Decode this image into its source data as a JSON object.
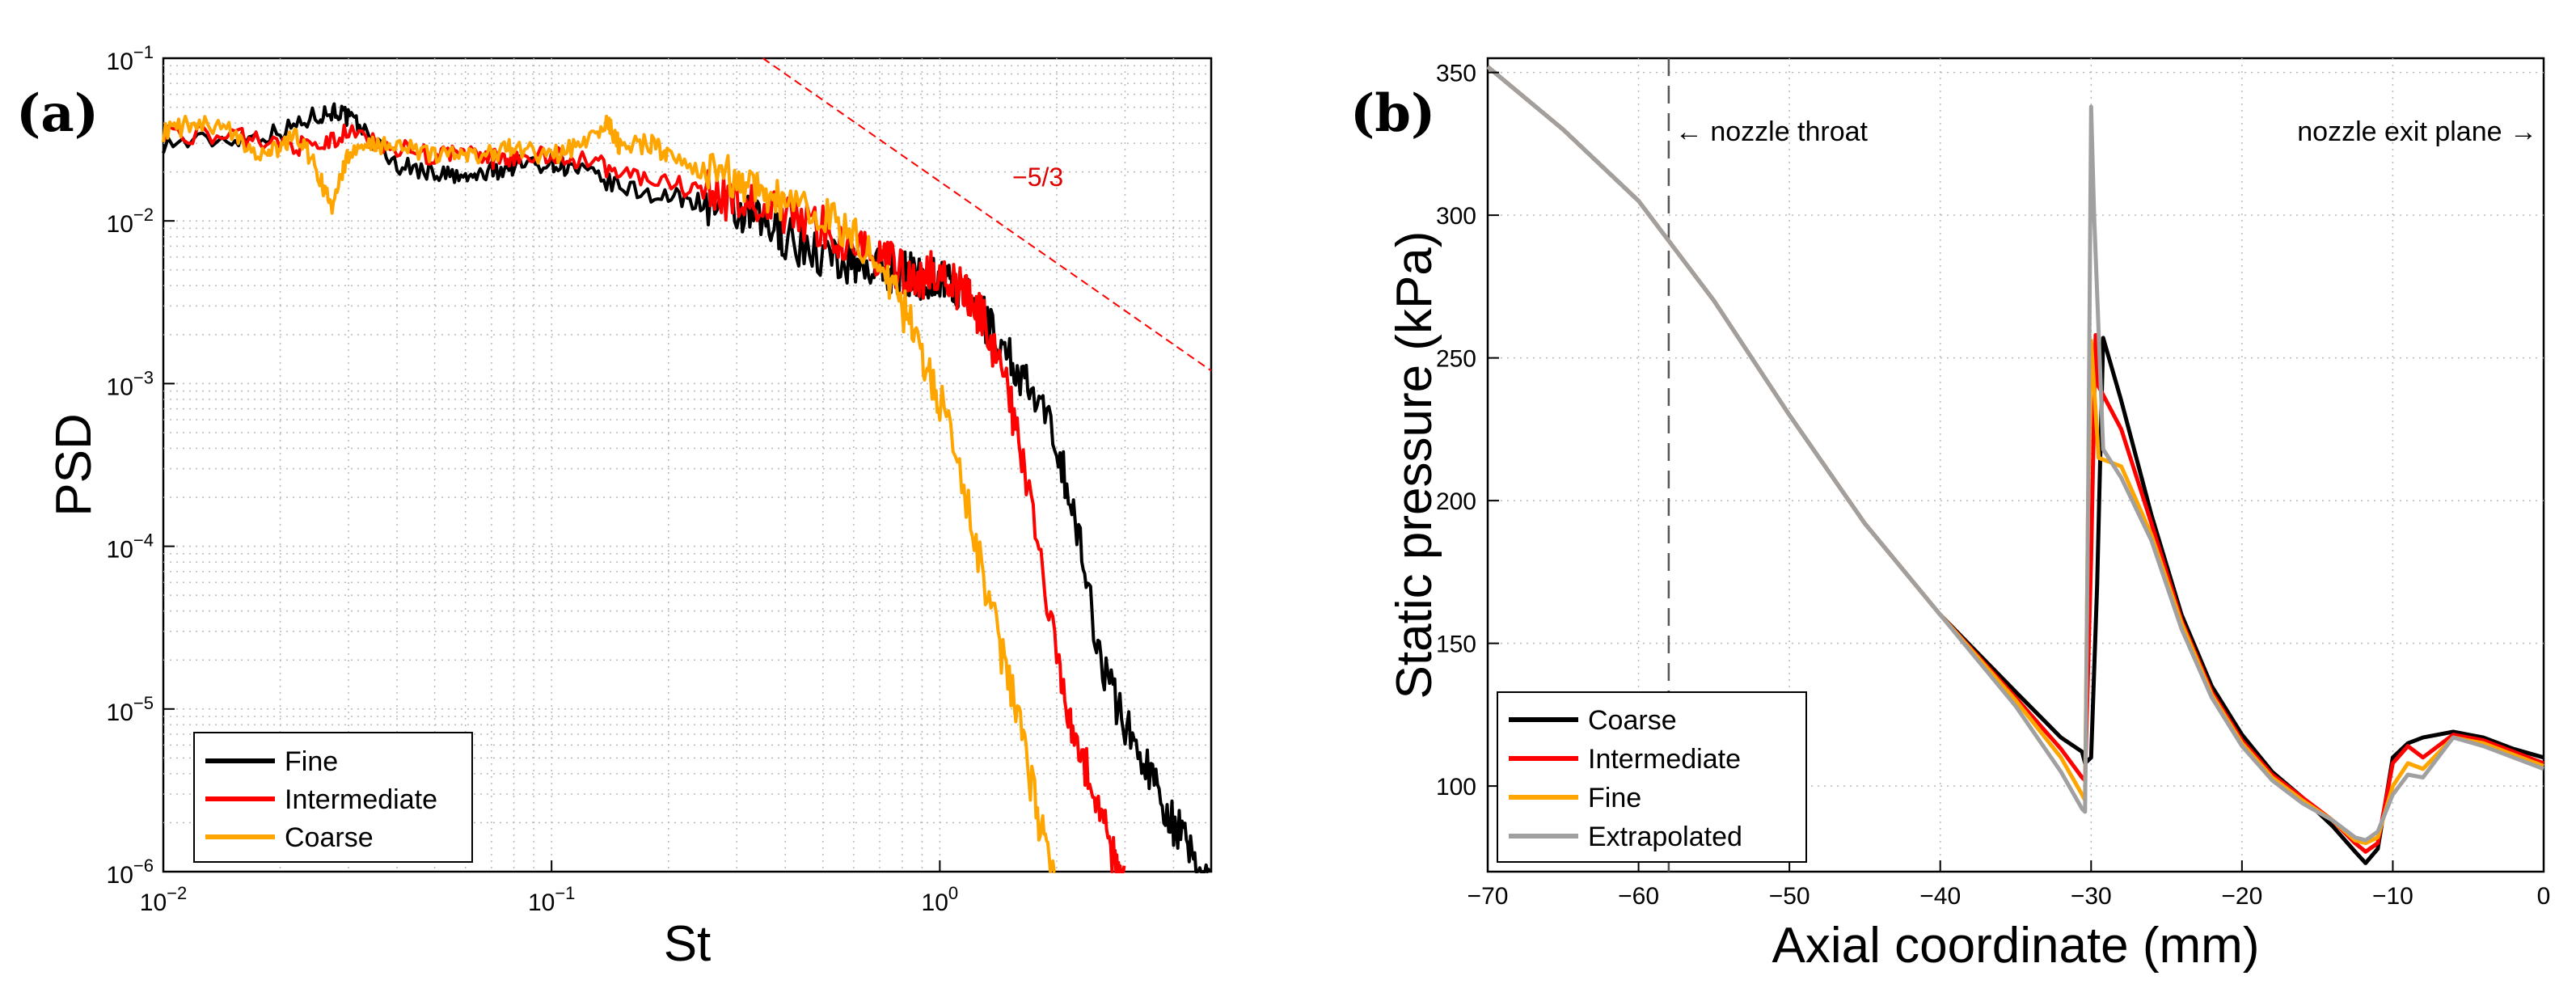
{
  "chart_data": [
    {
      "type": "line",
      "panel_label": "(a)",
      "xlabel": "St",
      "ylabel": "PSD",
      "xscale": "log",
      "yscale": "log",
      "xlim": [
        0.01,
        5
      ],
      "ylim": [
        1e-06,
        0.1
      ],
      "xticks": [
        0.01,
        0.1,
        1
      ],
      "xtick_labels": [
        {
          "base": "10",
          "exp": "−2"
        },
        {
          "base": "10",
          "exp": "−1"
        },
        {
          "base": "10",
          "exp": "0"
        }
      ],
      "yticks": [
        1e-06,
        1e-05,
        0.0001,
        0.001,
        0.01,
        0.1
      ],
      "ytick_labels": [
        {
          "base": "10",
          "exp": "−6"
        },
        {
          "base": "10",
          "exp": "−5"
        },
        {
          "base": "10",
          "exp": "−4"
        },
        {
          "base": "10",
          "exp": "−3"
        },
        {
          "base": "10",
          "exp": "−2"
        },
        {
          "base": "10",
          "exp": "−1"
        }
      ],
      "grid": true,
      "legend_position": "bottom-left",
      "series": [
        {
          "name": "Fine",
          "color": "#000000",
          "x": [
            0.01,
            0.015,
            0.02,
            0.025,
            0.028,
            0.032,
            0.04,
            0.05,
            0.06,
            0.07,
            0.08,
            0.1,
            0.12,
            0.15,
            0.2,
            0.25,
            0.3,
            0.35,
            0.4,
            0.5,
            0.6,
            0.7,
            0.8,
            0.9,
            1.0,
            1.1,
            1.3,
            1.5,
            1.7,
            2.0,
            2.3,
            2.6,
            3.0,
            3.5,
            4.0,
            4.5,
            5.0
          ],
          "y": [
            0.03,
            0.032,
            0.035,
            0.045,
            0.048,
            0.038,
            0.022,
            0.02,
            0.018,
            0.02,
            0.022,
            0.023,
            0.02,
            0.016,
            0.014,
            0.013,
            0.011,
            0.0095,
            0.008,
            0.006,
            0.0055,
            0.005,
            0.0048,
            0.0045,
            0.0045,
            0.0038,
            0.0025,
            0.0015,
            0.0009,
            0.00045,
            0.0001,
            2e-05,
            8e-06,
            4e-06,
            2e-06,
            1.2e-06,
            8e-07
          ]
        },
        {
          "name": "Intermediate",
          "color": "#ff0000",
          "x": [
            0.01,
            0.015,
            0.02,
            0.025,
            0.03,
            0.04,
            0.05,
            0.06,
            0.07,
            0.08,
            0.1,
            0.12,
            0.15,
            0.2,
            0.25,
            0.3,
            0.35,
            0.4,
            0.5,
            0.6,
            0.7,
            0.8,
            0.9,
            1.0,
            1.1,
            1.2,
            1.3,
            1.5,
            1.7,
            2.0,
            2.2,
            2.5,
            2.8,
            3.0
          ],
          "y": [
            0.035,
            0.033,
            0.03,
            0.028,
            0.035,
            0.028,
            0.025,
            0.026,
            0.024,
            0.025,
            0.025,
            0.024,
            0.02,
            0.017,
            0.015,
            0.013,
            0.012,
            0.011,
            0.009,
            0.007,
            0.006,
            0.005,
            0.0045,
            0.005,
            0.004,
            0.0032,
            0.0025,
            0.0009,
            0.0002,
            2e-05,
            8e-06,
            3e-06,
            1.2e-06,
            8e-07
          ]
        },
        {
          "name": "Coarse",
          "color": "#ffa500",
          "x": [
            0.01,
            0.012,
            0.015,
            0.018,
            0.02,
            0.022,
            0.025,
            0.027,
            0.03,
            0.035,
            0.04,
            0.05,
            0.06,
            0.07,
            0.08,
            0.1,
            0.12,
            0.14,
            0.15,
            0.18,
            0.2,
            0.25,
            0.3,
            0.35,
            0.4,
            0.5,
            0.6,
            0.7,
            0.8,
            0.9,
            1.0,
            1.2,
            1.4,
            1.6,
            1.8,
            2.0
          ],
          "y": [
            0.035,
            0.04,
            0.035,
            0.025,
            0.028,
            0.035,
            0.02,
            0.012,
            0.025,
            0.03,
            0.028,
            0.026,
            0.025,
            0.026,
            0.028,
            0.025,
            0.03,
            0.04,
            0.028,
            0.03,
            0.025,
            0.02,
            0.018,
            0.016,
            0.013,
            0.011,
            0.008,
            0.005,
            0.003,
            0.0015,
            0.0008,
            0.00015,
            3e-05,
            8e-06,
            2e-06,
            8e-07
          ]
        }
      ],
      "reference_line": {
        "label": "−5/3",
        "color": "#ff0000",
        "x": [
          0.35,
          5.0
        ],
        "y": [
          0.1,
          0.0012
        ]
      }
    },
    {
      "type": "line",
      "panel_label": "(b)",
      "xlabel": "Axial coordinate (mm)",
      "ylabel": "Static pressure (kPa)",
      "xlim": [
        -70,
        0
      ],
      "ylim": [
        70,
        355
      ],
      "xticks": [
        -70,
        -60,
        -50,
        -40,
        -30,
        -20,
        -10,
        0
      ],
      "xtick_labels": [
        "−70",
        "−60",
        "−50",
        "−40",
        "−30",
        "−20",
        "−10",
        "0"
      ],
      "yticks": [
        100,
        150,
        200,
        250,
        300,
        350
      ],
      "ytick_labels": [
        "100",
        "150",
        "200",
        "250",
        "300",
        "350"
      ],
      "grid": true,
      "legend_position": "bottom-left",
      "annotations": {
        "throat_text": "← nozzle throat",
        "throat_x": -58,
        "exit_text": "nozzle exit plane →"
      },
      "series": [
        {
          "name": "Coarse",
          "color": "#000000",
          "x": [
            -70,
            -65,
            -60,
            -55,
            -50,
            -45,
            -40,
            -35,
            -32,
            -30.6,
            -30.4,
            -30,
            -29.6,
            -29.2,
            -28,
            -26,
            -24,
            -22,
            -20,
            -18,
            -16,
            -14,
            -12.5,
            -11.8,
            -11,
            -10,
            -9,
            -8,
            -6,
            -4,
            -2,
            0
          ],
          "y": [
            352,
            330,
            305,
            270,
            230,
            192,
            160,
            133,
            117,
            112,
            108,
            110,
            170,
            257,
            235,
            195,
            160,
            135,
            118,
            105,
            96,
            86,
            77,
            73,
            78,
            110,
            115,
            117,
            119,
            117,
            113,
            110
          ]
        },
        {
          "name": "Intermediate",
          "color": "#ff0000",
          "x": [
            -70,
            -65,
            -60,
            -55,
            -50,
            -45,
            -40,
            -35,
            -32,
            -30.6,
            -30.4,
            -30,
            -29.7,
            -29.5,
            -28,
            -26,
            -24,
            -22,
            -20,
            -18,
            -16,
            -14,
            -12.5,
            -11.8,
            -11,
            -10,
            -9,
            -8,
            -6,
            -4,
            -2,
            0
          ],
          "y": [
            352,
            330,
            305,
            270,
            230,
            192,
            160,
            131,
            113,
            103,
            102,
            180,
            258,
            240,
            225,
            192,
            158,
            133,
            116,
            104,
            96,
            88,
            80,
            77,
            80,
            108,
            114,
            110,
            118,
            116,
            112,
            108
          ]
        },
        {
          "name": "Fine",
          "color": "#ffa500",
          "x": [
            -70,
            -65,
            -60,
            -55,
            -50,
            -45,
            -40,
            -35,
            -32,
            -30.6,
            -30.4,
            -30.2,
            -30,
            -29.5,
            -28,
            -26,
            -24,
            -22,
            -20,
            -18,
            -16,
            -14,
            -12.5,
            -11.8,
            -11,
            -10,
            -9,
            -8,
            -6,
            -4,
            -2,
            0
          ],
          "y": [
            352,
            330,
            305,
            270,
            230,
            192,
            160,
            130,
            110,
            97,
            95,
            200,
            256,
            215,
            212,
            188,
            157,
            132,
            115,
            103,
            95,
            88,
            81,
            80,
            82,
            100,
            108,
            106,
            117,
            115,
            111,
            107
          ]
        },
        {
          "name": "Extrapolated",
          "color": "#a0a0a0",
          "x": [
            -70,
            -65,
            -60,
            -55,
            -50,
            -45,
            -40,
            -35,
            -32,
            -30.6,
            -30.4,
            -30.2,
            -30,
            -29.8,
            -29.2,
            -28,
            -26,
            -24,
            -22,
            -20,
            -18,
            -16,
            -14,
            -12.5,
            -11.8,
            -11,
            -10,
            -9,
            -8,
            -6,
            -4,
            -2,
            0
          ],
          "y": [
            352,
            330,
            305,
            270,
            230,
            192,
            160,
            128,
            105,
            92,
            91,
            200,
            338,
            300,
            218,
            208,
            186,
            155,
            131,
            114,
            102,
            94,
            88,
            82,
            81,
            84,
            97,
            104,
            103,
            117,
            114,
            110,
            106
          ]
        }
      ]
    }
  ]
}
